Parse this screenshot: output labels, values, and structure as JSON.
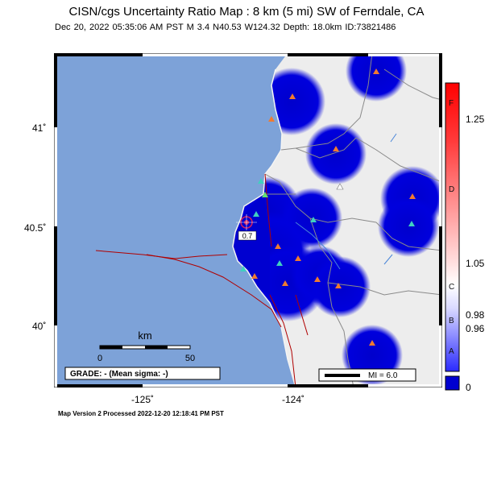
{
  "header": {
    "title": "CISN/cgs Uncertainty Ratio Map : 8 km (5 mi) SW of Ferndale, CA",
    "subtitle": "Dec 20, 2022 05:35:06 AM PST   M 3.4   N40.53 W124.32   Depth: 18.0km   ID:73821486"
  },
  "map": {
    "lat_labels": [
      "41˚",
      "40.5˚",
      "40˚"
    ],
    "lon_labels": [
      "-125˚",
      "-124˚"
    ],
    "colors": {
      "ocean": "#7da2d8",
      "land": "#ededed",
      "uncertainty_high": "#0000d0",
      "border": "#8a8a8a",
      "fault": "#b00000",
      "river": "#4a86d8"
    },
    "epicenter_label": "0.7",
    "scale_bar": {
      "unit_label": "km",
      "ticks": [
        "0",
        "50"
      ]
    },
    "grade_box": "GRADE: - (Mean sigma: -)",
    "mi_legend": "MI = 6.0"
  },
  "colorbar": {
    "values": [
      "1.25",
      "1.05",
      "0.98",
      "0.96",
      "0"
    ],
    "letters": [
      "F",
      "D",
      "C",
      "B",
      "A"
    ]
  },
  "footer": "Map Version 2 Processed 2022-12-20 12:18:41 PM PST"
}
